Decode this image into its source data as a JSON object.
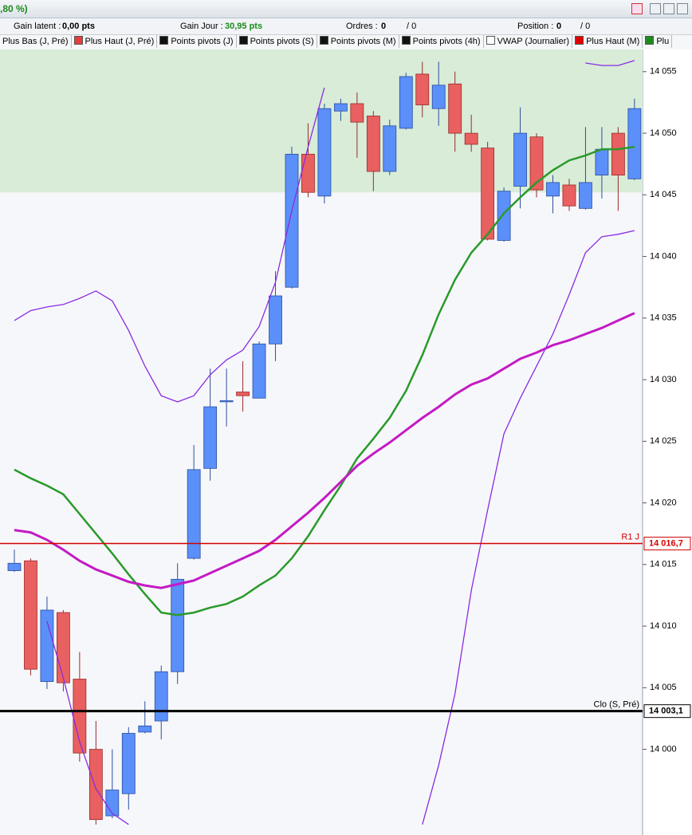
{
  "window": {
    "title": ",80 %)"
  },
  "toolbar": {
    "gain_latent_label": "Gain latent :",
    "gain_latent": "0,00 pts",
    "gain_jour_label": "Gain Jour :",
    "gain_jour": "30,95 pts",
    "ordres_label": "Ordres :",
    "ordres": "0",
    "ordres_total": "/ 0",
    "position_label": "Position :",
    "position": "0",
    "position_total": "/ 0"
  },
  "tabs": [
    {
      "label": "Plus Bas (J, Pré)",
      "color": null
    },
    {
      "label": "Plus Haut (J, Pré)",
      "color": "#e83b3b"
    },
    {
      "label": "Points pivots (J)",
      "color": "#111111"
    },
    {
      "label": "Points pivots (S)",
      "color": "#111111"
    },
    {
      "label": "Points pivots (M)",
      "color": "#111111"
    },
    {
      "label": "Points pivots (4h)",
      "color": "#111111"
    },
    {
      "label": "VWAP (Journalier)",
      "color": "#ffffff"
    },
    {
      "label": "Plus Haut (M)",
      "color": "#e00000"
    },
    {
      "label": "Plu",
      "color": "#1d8a1d"
    }
  ],
  "chart_data": {
    "type": "candlestick",
    "open": [
      14014.5,
      14015.3,
      14005.5,
      14011.1,
      14005.7,
      14000.0,
      13994.6,
      13996.4,
      14001.4,
      14002.3,
      14006.3,
      14015.5,
      14022.8,
      14028.2,
      14029.0,
      14028.5,
      14032.9,
      14037.5,
      14048.3,
      14044.9,
      14051.8,
      14052.4,
      14051.4,
      14046.9,
      14050.4,
      14054.8,
      14052.0,
      14054.0,
      14050.0,
      14048.8,
      14041.3,
      14045.7,
      14049.7,
      14044.9,
      14045.8,
      14043.9,
      14046.6,
      14050.0,
      14046.3
    ],
    "high": [
      14016.2,
      14015.5,
      14012.4,
      14011.3,
      14007.9,
      14002.3,
      14000.0,
      14001.8,
      14003.9,
      14006.8,
      14015.1,
      14024.7,
      14030.9,
      14030.9,
      14031.5,
      14033.1,
      14038.8,
      14048.9,
      14050.8,
      14052.4,
      14052.8,
      14053.3,
      14051.8,
      14051.1,
      14054.9,
      14055.8,
      14055.8,
      14055.0,
      14051.5,
      14049.3,
      14045.6,
      14052.1,
      14050.0,
      14046.6,
      14046.3,
      14050.5,
      14050.5,
      14050.5,
      14052.8
    ],
    "low": [
      14014.4,
      14006.0,
      14004.9,
      14004.7,
      13999.0,
      13993.9,
      13994.4,
      13995.1,
      14001.3,
      14000.8,
      14005.3,
      14015.4,
      14021.8,
      14026.2,
      14027.4,
      14028.5,
      14031.5,
      14037.4,
      14044.8,
      14044.3,
      14051.0,
      14048.0,
      14045.3,
      14046.6,
      14050.3,
      14051.3,
      14050.6,
      14048.5,
      14048.5,
      14041.3,
      14041.2,
      14043.9,
      14044.8,
      14043.5,
      14043.7,
      14043.8,
      14044.7,
      14043.7,
      14046.2
    ],
    "close": [
      14015.1,
      14006.5,
      14011.3,
      14005.4,
      13999.7,
      13994.3,
      13996.7,
      14001.3,
      14001.9,
      14006.3,
      14013.8,
      14022.7,
      14027.8,
      14028.3,
      14028.7,
      14032.9,
      14036.8,
      14048.3,
      14045.2,
      14052.0,
      14052.4,
      14050.9,
      14046.9,
      14050.6,
      14054.6,
      14052.3,
      14053.9,
      14050.0,
      14049.1,
      14041.4,
      14045.3,
      14050.0,
      14045.4,
      14046.0,
      14044.1,
      14046.0,
      14048.7,
      14046.6,
      14052.0
    ],
    "up_color": "#5b8ff9",
    "down_color": "#e8605f",
    "lines": [
      {
        "color": "#2a9a2a",
        "width": 2.5,
        "values": [
          14022.7,
          14022.0,
          14021.4,
          14020.7,
          14019.1,
          14017.5,
          14015.9,
          14014.2,
          14012.6,
          14011.1,
          14010.9,
          14011.1,
          14011.5,
          14011.8,
          14012.4,
          14013.3,
          14014.1,
          14015.5,
          14017.3,
          14019.4,
          14021.4,
          14023.6,
          14025.2,
          14026.9,
          14029.1,
          14032.0,
          14035.3,
          14038.1,
          14040.3,
          14041.8,
          14043.5,
          14044.8,
          14046.0,
          14047.0,
          14047.8,
          14048.2,
          14048.7,
          14048.7,
          14048.9
        ]
      },
      {
        "color": "#c41ac4",
        "width": 3,
        "values": [
          14017.8,
          14017.6,
          14017.0,
          14016.2,
          14015.3,
          14014.6,
          14014.1,
          14013.6,
          14013.3,
          14013.1,
          14013.4,
          14013.7,
          14014.3,
          14014.9,
          14015.5,
          14016.1,
          14017.0,
          14018.1,
          14019.2,
          14020.4,
          14021.7,
          14023.0,
          14024.0,
          14024.9,
          14025.9,
          14026.9,
          14027.8,
          14028.8,
          14029.6,
          14030.1,
          14030.9,
          14031.7,
          14032.2,
          14032.8,
          14033.2,
          14033.7,
          14034.2,
          14034.8,
          14035.4
        ]
      },
      {
        "color": "#8a2be2",
        "width": 1.3,
        "values": [
          14034.8,
          14035.6,
          14035.9,
          14036.1,
          14036.6,
          14037.2,
          14036.4,
          14034.0,
          14031.1,
          14028.7,
          14028.2,
          14028.7,
          14030.4,
          14031.6,
          14032.4,
          14034.3,
          14037.9,
          14043.7,
          14048.9,
          14053.7,
          null,
          null,
          null,
          null,
          null,
          null,
          null,
          null,
          null,
          null,
          null,
          null,
          null,
          null,
          null,
          14055.7,
          14055.5,
          14055.5,
          14055.9
        ]
      },
      {
        "color": "#8a2be2",
        "width": 1.3,
        "values": [
          null,
          null,
          14010.4,
          14005.8,
          14000.6,
          13996.8,
          13994.8,
          13993.9,
          null,
          null,
          null,
          null,
          null,
          null,
          null,
          null,
          null,
          null,
          null,
          null,
          null,
          null,
          null,
          null,
          null,
          13993.9,
          13998.7,
          14004.5,
          14012.9,
          14019.4,
          14025.6,
          14028.5,
          14031.1,
          14033.7,
          14036.9,
          14040.3,
          14041.6,
          14041.8,
          14042.1
        ]
      }
    ],
    "zone_from": 14045.2,
    "zone_color": "#d8ecd8",
    "levels": [
      {
        "label": "R1 J",
        "value": 14016.7,
        "value_label": "14 016,7",
        "color": "#d40000"
      },
      {
        "label": "Clo (S, Pré)",
        "value": 14003.1,
        "value_label": "14 003,1",
        "color": "#000000"
      }
    ],
    "ylim": [
      13993.5,
      14056.8
    ],
    "yticks": [
      {
        "value": 14000,
        "label": "14 000"
      },
      {
        "value": 14005,
        "label": "14 005"
      },
      {
        "value": 14010,
        "label": "14 010"
      },
      {
        "value": 14015,
        "label": "14 015"
      },
      {
        "value": 14020,
        "label": "14 020"
      },
      {
        "value": 14025,
        "label": "14 025"
      },
      {
        "value": 14030,
        "label": "14 030"
      },
      {
        "value": 14035,
        "label": "14 035"
      },
      {
        "value": 14040,
        "label": "14 040"
      },
      {
        "value": 14045,
        "label": "14 045"
      },
      {
        "value": 14050,
        "label": "14 050"
      },
      {
        "value": 14055,
        "label": "14 055"
      }
    ]
  }
}
